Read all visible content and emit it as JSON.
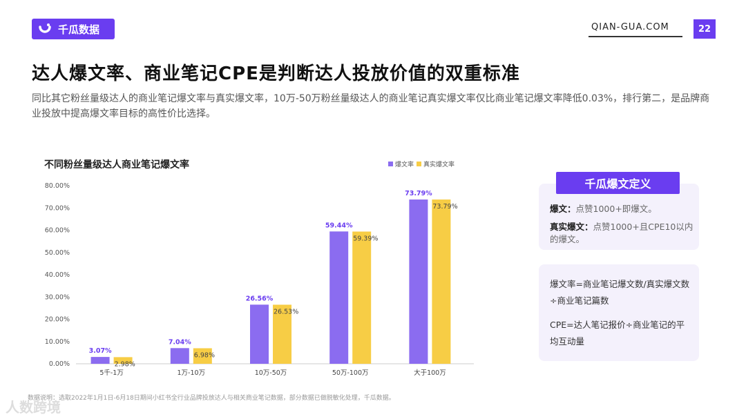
{
  "header": {
    "brand": "千瓜数据",
    "site": "QIAN-GUA.COM",
    "page_number": "22",
    "accent_color": "#6a3df0"
  },
  "title": "达人爆文率、商业笔记CPE是判断达人投放价值的双重标准",
  "description": "同比其它粉丝量级达人的商业笔记爆文率与真实爆文率，10万-50万粉丝量级达人的商业笔记真实爆文率仅比商业笔记爆文率降低0.03%，排行第二，是品牌商业投放中提高爆文率目标的高性价比选择。",
  "chart_data": {
    "type": "bar",
    "title": "不同粉丝量级达人商业笔记爆文率",
    "categories": [
      "5千-1万",
      "1万-10万",
      "10万-50万",
      "50万-100万",
      "大于100万"
    ],
    "series": [
      {
        "name": "爆文率",
        "color": "#8b6cf0",
        "values": [
          3.07,
          7.04,
          26.56,
          59.44,
          73.79
        ],
        "labels": [
          "3.07%",
          "7.04%",
          "26.56%",
          "59.44%",
          "73.79%"
        ]
      },
      {
        "name": "真实爆文率",
        "color": "#f7cd45",
        "values": [
          2.98,
          6.98,
          26.53,
          59.39,
          73.79
        ],
        "labels": [
          "2.98%",
          "6.98%",
          "26.53%",
          "59.39%",
          "73.79%"
        ]
      }
    ],
    "y_ticks": [
      "0.00%",
      "10.00%",
      "20.00%",
      "30.00%",
      "40.00%",
      "50.00%",
      "60.00%",
      "70.00%",
      "80.00%"
    ],
    "ylim": [
      0,
      80
    ],
    "legend_position": "top-right"
  },
  "definition_card": {
    "heading": "千瓜爆文定义",
    "items": [
      {
        "term": "爆文：",
        "text": "点赞1000+即爆文。"
      },
      {
        "term": "真实爆文：",
        "text": "点赞1000+且CPE10以内的爆文。"
      }
    ]
  },
  "formula_card": {
    "lines": [
      "爆文率=商业笔记爆文数/真实爆文数÷商业笔记篇数",
      "CPE=达人笔记报价÷商业笔记的平均互动量"
    ]
  },
  "source": "数据说明：选取2022年1月1日-6月18日期间小红书全行业品牌投放达人与相关商业笔记数据，部分数据已做脱敏化处理，千瓜数据。",
  "watermark": "人数跨境"
}
